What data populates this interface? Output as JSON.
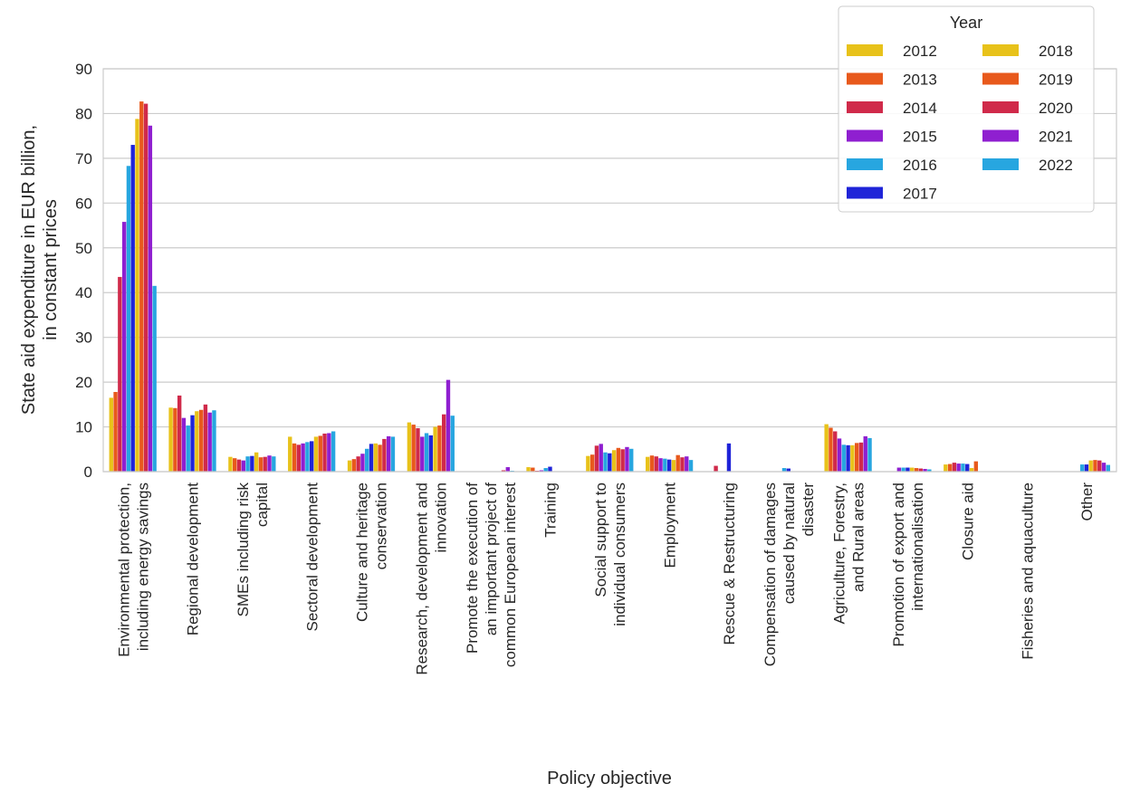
{
  "chart_data": {
    "type": "bar",
    "xlabel": "Policy objective",
    "ylabel": [
      "State aid expenditure in EUR billion,",
      "in constant prices"
    ],
    "ylim": [
      0,
      90
    ],
    "yticks": [
      0,
      10,
      20,
      30,
      40,
      50,
      60,
      70,
      80,
      90
    ],
    "grid": "horizontal",
    "legend_title": "Year",
    "legend_placement": "top-right",
    "categories": [
      [
        "Environmental protection,",
        "including energy savings"
      ],
      [
        "Regional development"
      ],
      [
        "SMEs including risk",
        "capital"
      ],
      [
        "Sectoral development"
      ],
      [
        "Culture and heritage",
        "conservation"
      ],
      [
        "Research, development and",
        "innovation"
      ],
      [
        "Promote the execution of",
        "an important project of",
        "common European interest"
      ],
      [
        "Training"
      ],
      [
        "Social support to",
        "individual consumers"
      ],
      [
        "Employment"
      ],
      [
        "Rescue & Restructuring"
      ],
      [
        "Compensation of damages",
        "caused by natural",
        "disaster"
      ],
      [
        "Agriculture, Forestry,",
        "and Rural areas"
      ],
      [
        "Promotion of export and",
        "internationalisation"
      ],
      [
        "Closure aid"
      ],
      [
        "Fisheries and aquaculture"
      ],
      [
        "Other"
      ]
    ],
    "series": [
      {
        "name": "2012",
        "color": "#e8c21a",
        "values": [
          16.5,
          14.3,
          3.3,
          7.8,
          2.5,
          11.0,
          0,
          1.0,
          3.5,
          3.3,
          0,
          0,
          10.6,
          0,
          1.6,
          0,
          0
        ]
      },
      {
        "name": "2013",
        "color": "#e8591c",
        "values": [
          17.8,
          14.2,
          3.0,
          6.3,
          2.8,
          10.5,
          0,
          0.9,
          3.8,
          3.6,
          0,
          0,
          9.8,
          0,
          1.7,
          0,
          0
        ]
      },
      {
        "name": "2014",
        "color": "#d02a4a",
        "values": [
          43.5,
          17.0,
          2.7,
          6.0,
          3.4,
          9.7,
          0,
          0.2,
          5.8,
          3.4,
          1.3,
          0,
          9.0,
          0,
          2.0,
          0,
          0
        ]
      },
      {
        "name": "2015",
        "color": "#8f1fd0",
        "values": [
          55.8,
          12.0,
          2.5,
          6.3,
          4.0,
          7.8,
          0,
          0.3,
          6.2,
          3.0,
          0,
          0,
          7.4,
          0.9,
          1.8,
          0,
          0
        ]
      },
      {
        "name": "2016",
        "color": "#27a6e0",
        "values": [
          68.3,
          10.3,
          3.4,
          6.6,
          5.1,
          8.6,
          0,
          0.8,
          4.3,
          2.9,
          0,
          0.8,
          6.0,
          0.9,
          1.8,
          0,
          1.6
        ]
      },
      {
        "name": "2017",
        "color": "#1f24d8",
        "values": [
          73.0,
          12.6,
          3.5,
          6.8,
          6.2,
          8.1,
          0,
          1.1,
          4.1,
          2.7,
          6.3,
          0.7,
          5.9,
          0.9,
          1.7,
          0,
          1.6
        ]
      },
      {
        "name": "2018",
        "color": "#e8c21a",
        "values": [
          78.8,
          13.5,
          4.3,
          7.8,
          6.3,
          10.0,
          0.1,
          0,
          4.8,
          2.6,
          0,
          0,
          5.9,
          0.9,
          0.8,
          0,
          2.5
        ]
      },
      {
        "name": "2019",
        "color": "#e8591c",
        "values": [
          82.7,
          13.8,
          3.2,
          8.0,
          6.0,
          10.3,
          0.1,
          0,
          5.3,
          3.7,
          0,
          0,
          6.4,
          0.8,
          2.3,
          0,
          2.6
        ]
      },
      {
        "name": "2020",
        "color": "#d02a4a",
        "values": [
          82.2,
          15.0,
          3.3,
          8.5,
          7.3,
          12.8,
          0.3,
          0,
          5.0,
          3.2,
          0,
          0,
          6.5,
          0.7,
          0,
          0,
          2.5
        ]
      },
      {
        "name": "2021",
        "color": "#8f1fd0",
        "values": [
          77.3,
          13.2,
          3.6,
          8.6,
          7.9,
          20.5,
          1.0,
          0,
          5.5,
          3.4,
          0,
          0,
          7.9,
          0.6,
          0,
          0,
          2.0
        ]
      },
      {
        "name": "2022",
        "color": "#27a6e0",
        "values": [
          41.5,
          13.7,
          3.4,
          9.0,
          7.8,
          12.5,
          0.2,
          0,
          5.1,
          2.6,
          0,
          0,
          7.5,
          0.5,
          0,
          0,
          1.5
        ]
      }
    ]
  }
}
